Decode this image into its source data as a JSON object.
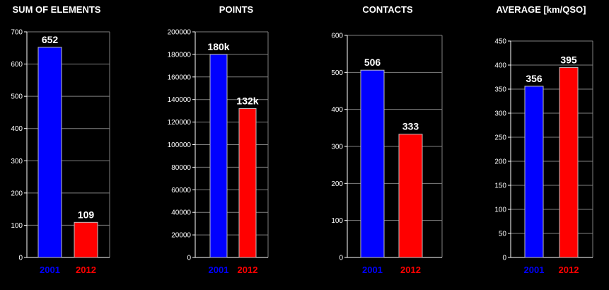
{
  "chart_data": [
    {
      "type": "bar",
      "title": "SUM OF ELEMENTS",
      "categories": [
        "2001",
        "2012"
      ],
      "values": [
        652,
        109
      ],
      "data_labels": [
        "652",
        "109"
      ],
      "ylim": [
        0,
        700
      ],
      "yticks": [
        0,
        100,
        200,
        300,
        400,
        500,
        600,
        700
      ],
      "grid": true,
      "colors": [
        "#0000ff",
        "#ff0000"
      ]
    },
    {
      "type": "bar",
      "title": "POINTS",
      "categories": [
        "2001",
        "2012"
      ],
      "values": [
        180000,
        132000
      ],
      "data_labels": [
        "180k",
        "132k"
      ],
      "ylim": [
        0,
        200000
      ],
      "yticks": [
        0,
        20000,
        40000,
        60000,
        80000,
        100000,
        120000,
        140000,
        160000,
        180000,
        200000
      ],
      "grid": true,
      "colors": [
        "#0000ff",
        "#ff0000"
      ]
    },
    {
      "type": "bar",
      "title": "CONTACTS",
      "categories": [
        "2001",
        "2012"
      ],
      "values": [
        506,
        333
      ],
      "data_labels": [
        "506",
        "333"
      ],
      "ylim": [
        0,
        600
      ],
      "yticks": [
        0,
        100,
        200,
        300,
        400,
        500,
        600
      ],
      "grid": true,
      "colors": [
        "#0000ff",
        "#ff0000"
      ]
    },
    {
      "type": "bar",
      "title": "AVERAGE  [km/QSO]",
      "categories": [
        "2001",
        "2012"
      ],
      "values": [
        356,
        395
      ],
      "data_labels": [
        "356",
        "395"
      ],
      "ylim": [
        0,
        450
      ],
      "yticks": [
        0,
        50,
        100,
        150,
        200,
        250,
        300,
        350,
        400,
        450
      ],
      "grid": true,
      "colors": [
        "#0000ff",
        "#ff0000"
      ]
    }
  ]
}
